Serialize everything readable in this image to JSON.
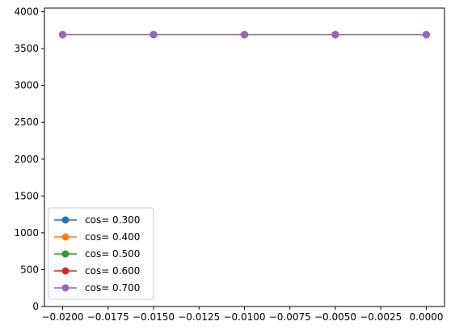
{
  "chart_data": {
    "type": "line",
    "title": "",
    "xlabel": "",
    "ylabel": "",
    "x": [
      -0.02,
      -0.015,
      -0.01,
      -0.005,
      0.0
    ],
    "xlim": [
      -0.021,
      0.001
    ],
    "ylim": [
      0,
      4050
    ],
    "x_ticks": [
      -0.02,
      -0.0175,
      -0.015,
      -0.0125,
      -0.01,
      -0.0075,
      -0.005,
      -0.0025,
      0.0
    ],
    "x_tick_labels": [
      "−0.0200",
      "−0.0175",
      "−0.0150",
      "−0.0125",
      "−0.0100",
      "−0.0075",
      "−0.0050",
      "−0.0025",
      "0.0000"
    ],
    "y_ticks": [
      0,
      500,
      1000,
      1500,
      2000,
      2500,
      3000,
      3500,
      4000
    ],
    "y_tick_labels": [
      "0",
      "500",
      "1000",
      "1500",
      "2000",
      "2500",
      "3000",
      "3500",
      "4000"
    ],
    "grid": false,
    "legend_position": "lower-left",
    "series": [
      {
        "name": "cos= 0.300",
        "color": "#1f77b4",
        "values": [
          3690,
          3690,
          3690,
          3690,
          3690
        ]
      },
      {
        "name": "cos= 0.400",
        "color": "#ff7f0e",
        "values": [
          3690,
          3690,
          3690,
          3690,
          3690
        ]
      },
      {
        "name": "cos= 0.500",
        "color": "#2ca02c",
        "values": [
          3690,
          3690,
          3690,
          3690,
          3690
        ]
      },
      {
        "name": "cos= 0.600",
        "color": "#d62728",
        "values": [
          3690,
          3690,
          3690,
          3690,
          3690
        ]
      },
      {
        "name": "cos= 0.700",
        "color": "#9467bd",
        "values": [
          3690,
          3690,
          3690,
          3690,
          3690
        ]
      }
    ]
  }
}
